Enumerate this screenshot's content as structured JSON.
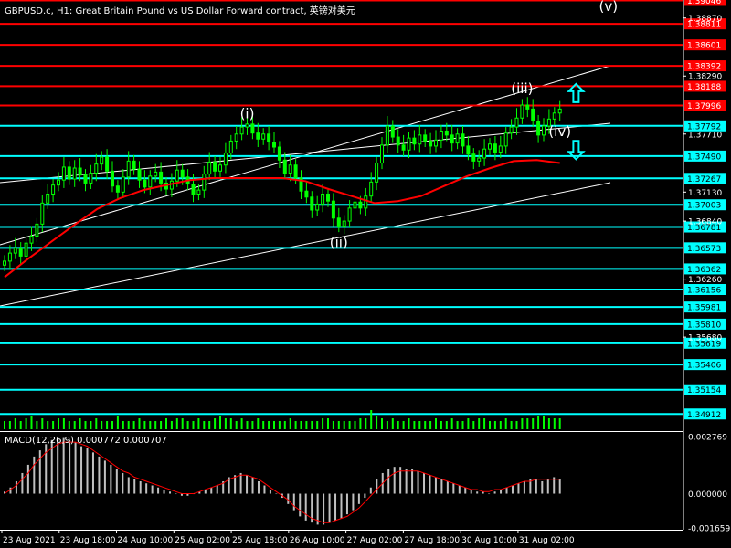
{
  "header": {
    "title": "GBPUSD.c, H1:  Great Britain Pound vs US Dollar Forward contract, 英镑对美元",
    "macd_label": "MACD(12,26,9) 0.000772 0.000707"
  },
  "colors": {
    "background": "#000000",
    "candle": "#00ff00",
    "resistance": "#ff0000",
    "support": "#00ffff",
    "ma": "#ff0000",
    "channel": "#ffffff",
    "macd_hist": "#c0c0c0",
    "macd_signal": "#ff0000",
    "volume": "#00ff00",
    "arrow": "#00ffff",
    "axis_text": "#ffffff"
  },
  "chart_data": {
    "type": "candlestick",
    "symbol": "GBPUSD.c",
    "timeframe": "H1",
    "price_range": [
      1.3475,
      1.3905
    ],
    "price_ticks": [
      "1.38870",
      "1.38290",
      "1.37710",
      "1.37130",
      "1.36840",
      "1.36260",
      "1.35680"
    ],
    "horizontal_levels": {
      "resistance": [
        {
          "label": "1.39046",
          "value": 1.39046
        },
        {
          "label": "1.38811",
          "value": 1.38811
        },
        {
          "label": "1.38601",
          "value": 1.38601
        },
        {
          "label": "1.38392",
          "value": 1.38392
        },
        {
          "label": "1.38188",
          "value": 1.38188
        },
        {
          "label": "1.37996",
          "value": 1.37996
        }
      ],
      "support": [
        {
          "label": "1.37792",
          "value": 1.37792
        },
        {
          "label": "1.37490",
          "value": 1.3749
        },
        {
          "label": "1.37267",
          "value": 1.37267
        },
        {
          "label": "1.37003",
          "value": 1.37003
        },
        {
          "label": "1.36781",
          "value": 1.36781
        },
        {
          "label": "1.36573",
          "value": 1.36573
        },
        {
          "label": "1.36362",
          "value": 1.36362
        },
        {
          "label": "1.36156",
          "value": 1.36156
        },
        {
          "label": "1.35981",
          "value": 1.35981
        },
        {
          "label": "1.35810",
          "value": 1.3581
        },
        {
          "label": "1.35619",
          "value": 1.35619
        },
        {
          "label": "1.35406",
          "value": 1.35406
        },
        {
          "label": "1.35154",
          "value": 1.35154
        },
        {
          "label": "1.34912",
          "value": 1.34912
        }
      ]
    },
    "time_labels": [
      "23 Aug 2021",
      "23 Aug 18:00",
      "24 Aug 10:00",
      "25 Aug 02:00",
      "25 Aug 18:00",
      "26 Aug 10:00",
      "27 Aug 02:00",
      "27 Aug 18:00",
      "30 Aug 10:00",
      "31 Aug 02:00"
    ],
    "wave_labels": [
      {
        "text": "(i)",
        "bar": 45,
        "price": 1.3787
      },
      {
        "text": "(ii)",
        "bar": 62,
        "price": 1.3658
      },
      {
        "text": "(iii)",
        "bar": 96,
        "price": 1.3812
      },
      {
        "text": "(iv)",
        "bar": 103,
        "price": 1.3769
      },
      {
        "text": "(v)",
        "bar": 112,
        "price": 1.3894
      }
    ],
    "arrows": [
      {
        "direction": "up",
        "bar": 106,
        "price": 1.3812
      },
      {
        "direction": "down",
        "bar": 106,
        "price": 1.3755
      }
    ],
    "closes": [
      1.3644,
      1.3652,
      1.3657,
      1.3649,
      1.3662,
      1.3669,
      1.3681,
      1.3702,
      1.3711,
      1.372,
      1.3725,
      1.3738,
      1.3726,
      1.3737,
      1.373,
      1.3722,
      1.3732,
      1.3741,
      1.3748,
      1.3734,
      1.3719,
      1.3713,
      1.3728,
      1.3744,
      1.3736,
      1.3725,
      1.3718,
      1.3729,
      1.3733,
      1.3722,
      1.3716,
      1.3724,
      1.3735,
      1.3728,
      1.3721,
      1.3711,
      1.3715,
      1.3731,
      1.3743,
      1.3734,
      1.374,
      1.3752,
      1.3764,
      1.3771,
      1.3778,
      1.3781,
      1.3772,
      1.3766,
      1.3771,
      1.3763,
      1.3758,
      1.3745,
      1.3732,
      1.374,
      1.3727,
      1.3714,
      1.3708,
      1.3695,
      1.3701,
      1.3711,
      1.3704,
      1.3687,
      1.3679,
      1.3684,
      1.3697,
      1.3703,
      1.3697,
      1.3709,
      1.3723,
      1.3742,
      1.376,
      1.3779,
      1.3768,
      1.376,
      1.3755,
      1.3767,
      1.3761,
      1.377,
      1.3764,
      1.3759,
      1.3765,
      1.3774,
      1.377,
      1.3762,
      1.3771,
      1.3759,
      1.3751,
      1.3744,
      1.3747,
      1.3756,
      1.3761,
      1.3753,
      1.3759,
      1.3772,
      1.3778,
      1.3787,
      1.38,
      1.3796,
      1.3784,
      1.377,
      1.3779,
      1.3786,
      1.3792,
      1.3796
    ],
    "ma_period": 100,
    "ma_values": [
      1.3628,
      1.3646,
      1.3663,
      1.368,
      1.3696,
      1.3707,
      1.3715,
      1.372,
      1.3725,
      1.3727,
      1.3727,
      1.3727,
      1.3727,
      1.3724,
      1.3716,
      1.3709,
      1.3702,
      1.3704,
      1.3709,
      1.3719,
      1.3729,
      1.3737,
      1.3744,
      1.3745,
      1.3742
    ],
    "volume": [
      3,
      3,
      4,
      3,
      4,
      5,
      3,
      4,
      3,
      3,
      4,
      4,
      3,
      3,
      4,
      3,
      3,
      4,
      3,
      3,
      3,
      5,
      3,
      3,
      3,
      4,
      3,
      3,
      3,
      3,
      4,
      3,
      4,
      4,
      3,
      3,
      4,
      3,
      3,
      4,
      5,
      4,
      4,
      3,
      4,
      3,
      3,
      4,
      3,
      3,
      3,
      3,
      3,
      4,
      3,
      3,
      3,
      3,
      3,
      4,
      4,
      3,
      3,
      3,
      3,
      3,
      4,
      4,
      7,
      5,
      4,
      3,
      4,
      3,
      3,
      4,
      3,
      3,
      3,
      3,
      4,
      3,
      3,
      4,
      3,
      3,
      4,
      3,
      4,
      4,
      3,
      3,
      3,
      4,
      3,
      3,
      4,
      4,
      4,
      5,
      5,
      4,
      4,
      4
    ],
    "macd": {
      "label": "MACD(12,26,9) 0.000772 0.000707",
      "range": [
        -0.001659,
        0.002769
      ],
      "ticks": [
        "0.002769",
        "0.000000",
        "-0.001659"
      ],
      "histogram": [
        0.0001,
        0.0003,
        0.0006,
        0.001,
        0.0014,
        0.0018,
        0.0021,
        0.0024,
        0.0026,
        0.0027,
        0.0027,
        0.0026,
        0.0025,
        0.0023,
        0.0022,
        0.002,
        0.0018,
        0.0016,
        0.0014,
        0.0012,
        0.001,
        0.0008,
        0.0007,
        0.0006,
        0.0005,
        0.0004,
        0.0003,
        0.0002,
        0.0001,
        0.0,
        -0.0001,
        -0.0001,
        0.0,
        0.0001,
        0.0002,
        0.0003,
        0.0004,
        0.0006,
        0.0008,
        0.0009,
        0.001,
        0.0009,
        0.0008,
        0.0006,
        0.0004,
        0.0002,
        0.0,
        -0.0002,
        -0.0005,
        -0.0008,
        -0.0011,
        -0.0013,
        -0.0014,
        -0.0015,
        -0.0015,
        -0.0014,
        -0.0013,
        -0.0012,
        -0.001,
        -0.0008,
        -0.0005,
        -0.0002,
        0.0003,
        0.0007,
        0.001,
        0.0012,
        0.0013,
        0.0013,
        0.0012,
        0.0012,
        0.0011,
        0.001,
        0.0009,
        0.0008,
        0.0007,
        0.0006,
        0.0005,
        0.0004,
        0.0003,
        0.0002,
        0.0001,
        0.0001,
        0.0,
        0.0001,
        0.0002,
        0.0003,
        0.0004,
        0.0005,
        0.0006,
        0.0007,
        0.0007,
        0.0006,
        0.0007,
        0.0008,
        0.0007
      ],
      "signal": [
        0.0,
        0.0002,
        0.0004,
        0.0007,
        0.001,
        0.0014,
        0.0017,
        0.002,
        0.0022,
        0.0024,
        0.0025,
        0.0025,
        0.0025,
        0.0024,
        0.0023,
        0.0021,
        0.0019,
        0.0017,
        0.0015,
        0.0013,
        0.0011,
        0.001,
        0.0008,
        0.0007,
        0.0006,
        0.0005,
        0.0004,
        0.0003,
        0.0002,
        0.0001,
        0.0,
        0.0,
        0.0,
        0.0001,
        0.0002,
        0.0003,
        0.0004,
        0.0005,
        0.0007,
        0.0008,
        0.0009,
        0.0009,
        0.0008,
        0.0007,
        0.0005,
        0.0003,
        0.0001,
        -0.0001,
        -0.0003,
        -0.0006,
        -0.0008,
        -0.001,
        -0.0012,
        -0.0013,
        -0.0014,
        -0.0014,
        -0.0013,
        -0.0012,
        -0.0011,
        -0.0009,
        -0.0007,
        -0.0004,
        -0.0001,
        0.0002,
        0.0005,
        0.0008,
        0.001,
        0.0011,
        0.0011,
        0.0011,
        0.0011,
        0.001,
        0.0009,
        0.0008,
        0.0007,
        0.0006,
        0.0005,
        0.0004,
        0.0003,
        0.0002,
        0.0002,
        0.0001,
        0.0001,
        0.0002,
        0.0002,
        0.0003,
        0.0004,
        0.0005,
        0.0006,
        0.0006,
        0.0007,
        0.0007,
        0.0007,
        0.0007,
        0.0007
      ]
    }
  }
}
